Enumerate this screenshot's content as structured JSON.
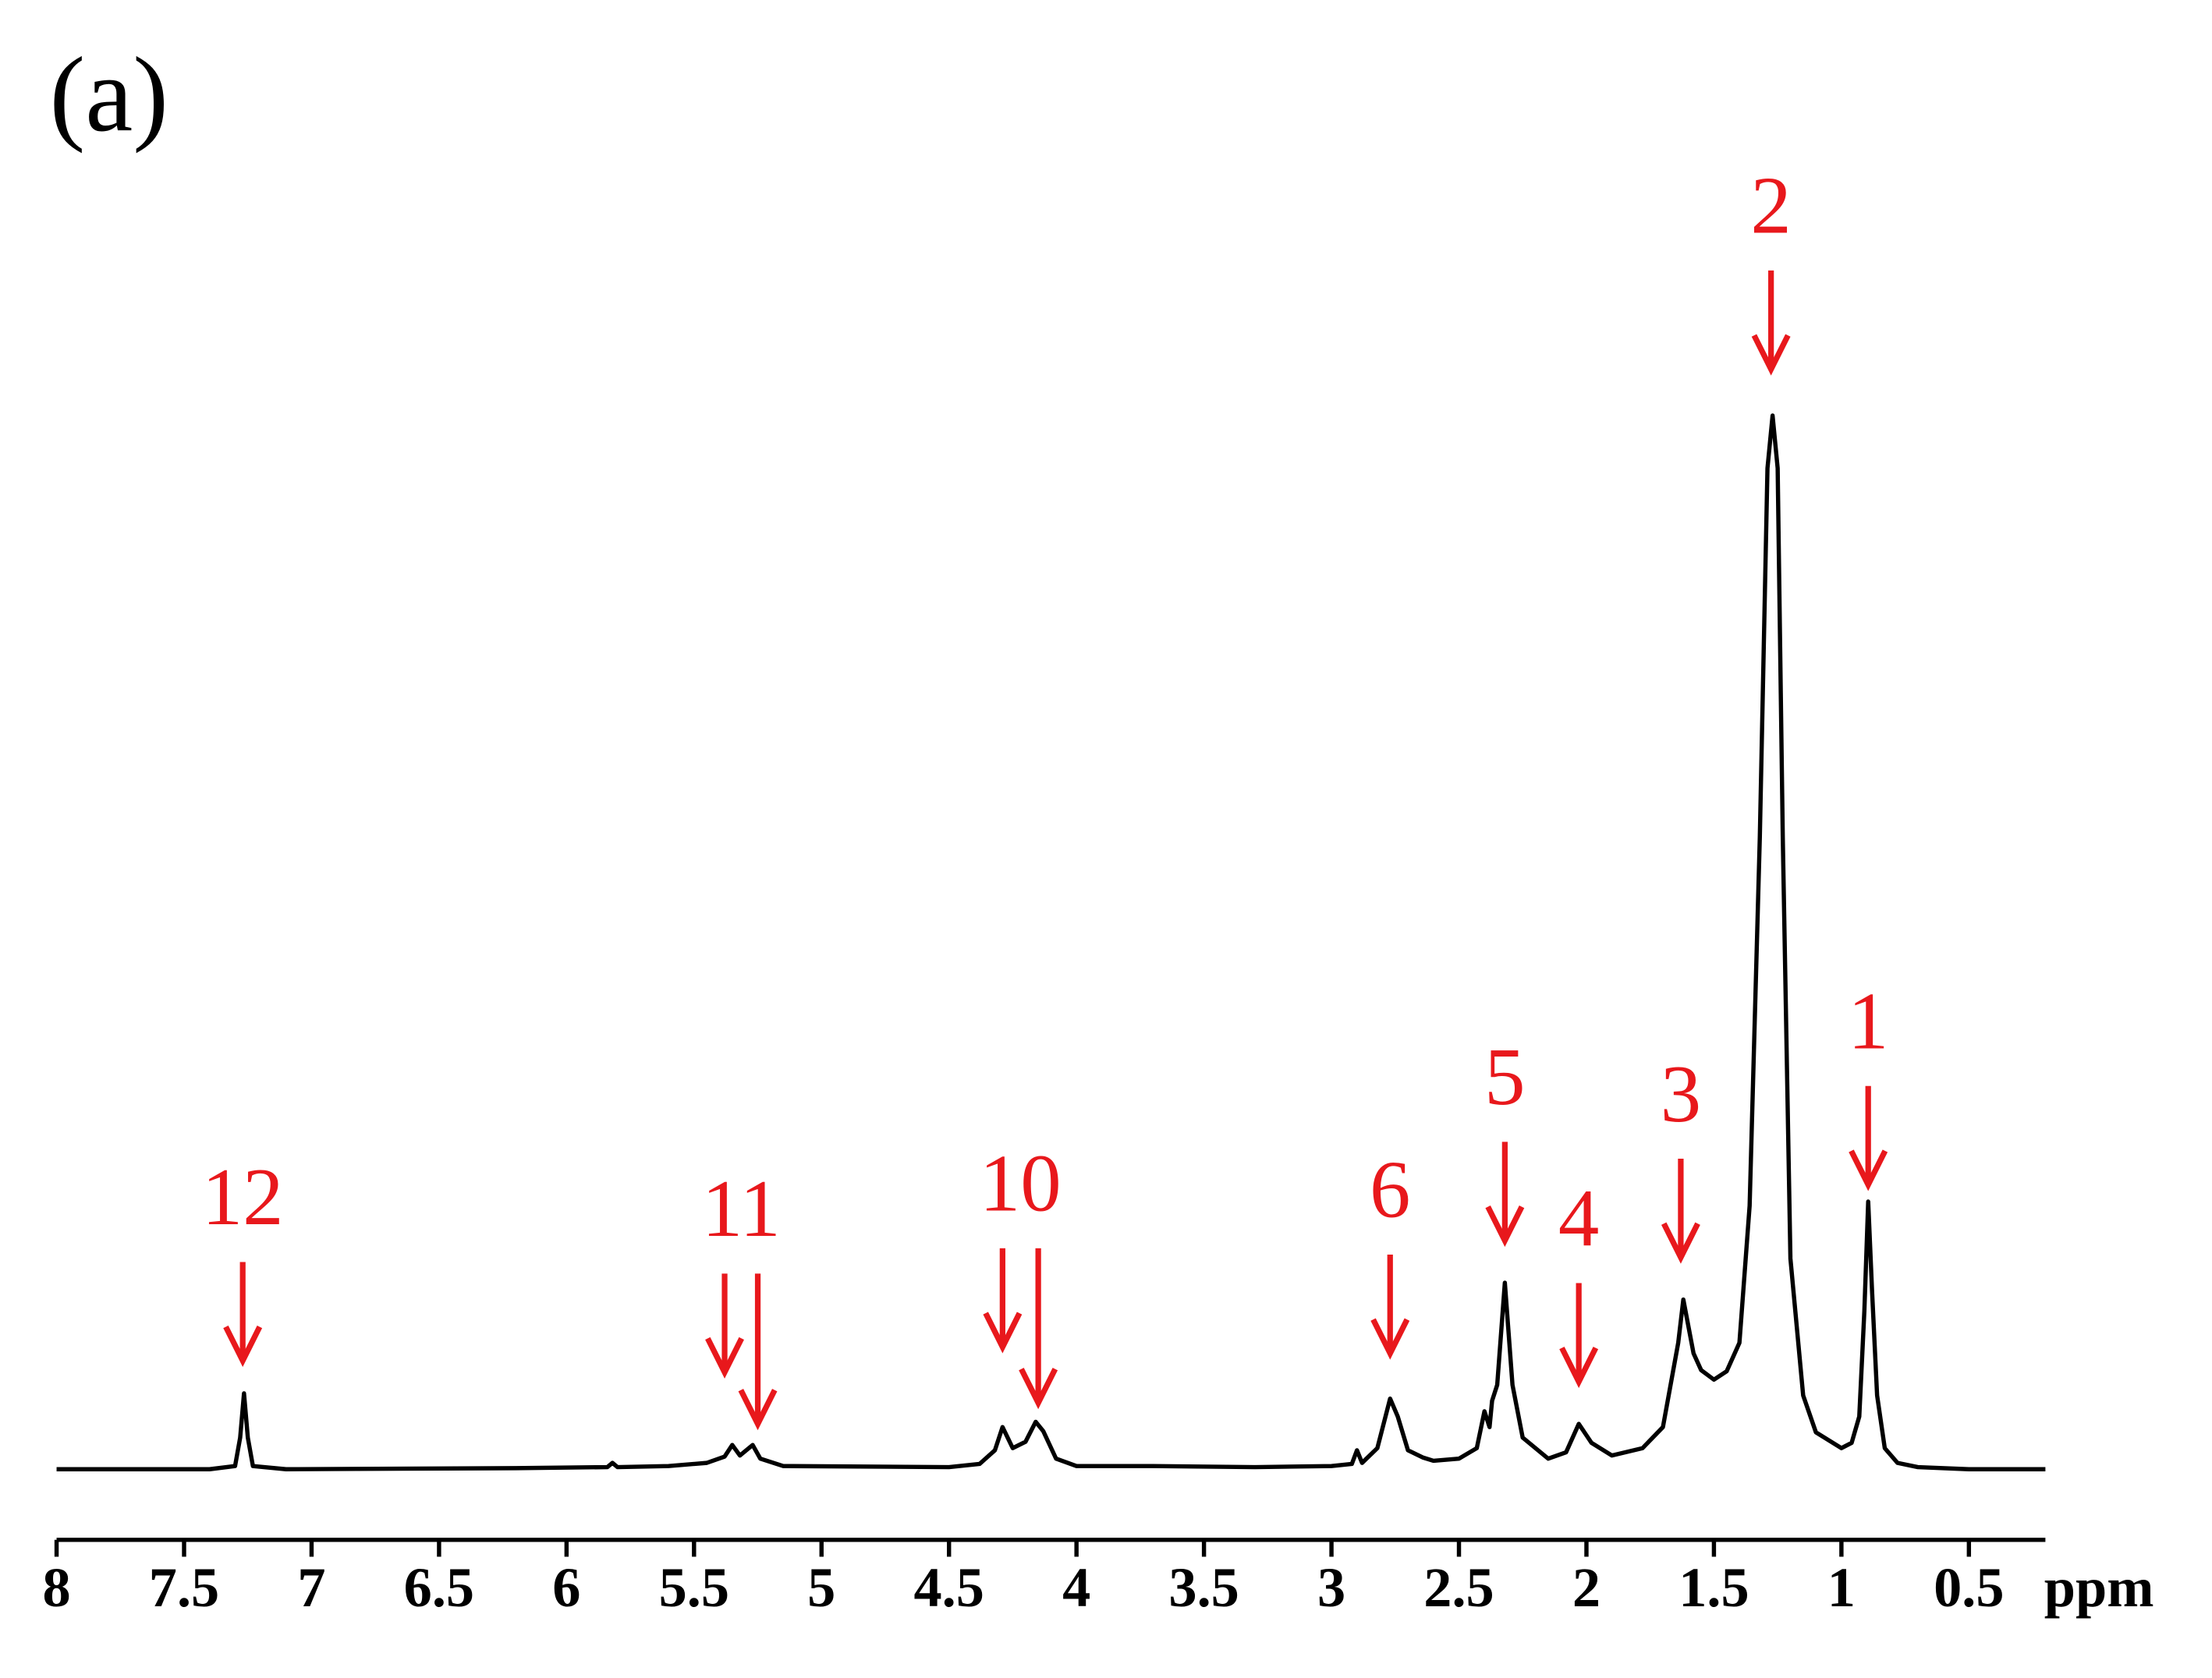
{
  "chart_data": {
    "type": "line",
    "panel_label": "(a)",
    "x_unit_label": "ppm",
    "xlim": [
      8,
      0.2
    ],
    "ylim": [
      -6.7,
      110
    ],
    "xticks": [
      8,
      7.5,
      7,
      6.5,
      6,
      5.5,
      5,
      4.5,
      4,
      3.5,
      3,
      2.5,
      2,
      1.5,
      1,
      0.5
    ],
    "series": [
      {
        "color": "#000000",
        "x": [
          8.0,
          7.4,
          7.3,
          7.28,
          7.265,
          7.25,
          7.23,
          7.1,
          6.2,
          5.84,
          5.82,
          5.8,
          5.6,
          5.45,
          5.38,
          5.35,
          5.32,
          5.29,
          5.27,
          5.24,
          5.15,
          4.5,
          4.38,
          4.32,
          4.29,
          4.25,
          4.2,
          4.16,
          4.13,
          4.08,
          4.0,
          3.7,
          3.3,
          3.0,
          2.92,
          2.9,
          2.88,
          2.82,
          2.77,
          2.74,
          2.7,
          2.64,
          2.6,
          2.5,
          2.43,
          2.4,
          2.38,
          2.37,
          2.35,
          2.32,
          2.29,
          2.25,
          2.15,
          2.08,
          2.03,
          1.98,
          1.9,
          1.78,
          1.7,
          1.64,
          1.62,
          1.58,
          1.55,
          1.5,
          1.45,
          1.4,
          1.36,
          1.32,
          1.29,
          1.27,
          1.25,
          1.23,
          1.2,
          1.15,
          1.1,
          1.0,
          0.96,
          0.93,
          0.91,
          0.895,
          0.88,
          0.86,
          0.83,
          0.78,
          0.7,
          0.5,
          0.2
        ],
        "values": [
          0,
          0,
          0.3,
          3,
          7.2,
          3,
          0.3,
          0,
          0.1,
          0.2,
          0.6,
          0.2,
          0.3,
          0.6,
          1.2,
          2.3,
          1.3,
          1.9,
          2.3,
          1.0,
          0.3,
          0.2,
          0.5,
          1.8,
          4.0,
          2.0,
          2.6,
          4.5,
          3.6,
          1.0,
          0.3,
          0.3,
          0.2,
          0.3,
          0.5,
          1.8,
          0.6,
          2.0,
          6.7,
          5.0,
          1.8,
          1.1,
          0.8,
          1.0,
          2.0,
          5.5,
          4.0,
          6.5,
          8.0,
          17.7,
          8.0,
          3.0,
          1.0,
          1.6,
          4.3,
          2.5,
          1.3,
          2.0,
          4.0,
          12,
          16.1,
          11,
          9.4,
          8.5,
          9.3,
          12,
          25,
          60,
          95,
          100,
          95,
          60,
          20,
          7,
          3.5,
          2.0,
          2.5,
          5,
          15,
          25.4,
          17,
          7,
          2,
          0.6,
          0.2,
          0,
          0
        ]
      }
    ],
    "annotations": [
      {
        "text": "12",
        "color": "#e8181c",
        "arrows": [
          {
            "x": 7.27,
            "y": 10.3
          }
        ]
      },
      {
        "text": "11",
        "color": "#e8181c",
        "arrows": [
          {
            "x": 5.38,
            "y": 9.2
          },
          {
            "x": 5.25,
            "y": 4.3
          }
        ]
      },
      {
        "text": "10",
        "color": "#e8181c",
        "arrows": [
          {
            "x": 4.29,
            "y": 11.6
          },
          {
            "x": 4.15,
            "y": 6.3
          }
        ]
      },
      {
        "text": "6",
        "color": "#e8181c",
        "arrows": [
          {
            "x": 2.77,
            "y": 11.0
          }
        ]
      },
      {
        "text": "5",
        "color": "#e8181c",
        "arrows": [
          {
            "x": 2.32,
            "y": 21.7
          }
        ]
      },
      {
        "text": "4",
        "color": "#e8181c",
        "arrows": [
          {
            "x": 2.03,
            "y": 8.3
          }
        ]
      },
      {
        "text": "3",
        "color": "#e8181c",
        "arrows": [
          {
            "x": 1.63,
            "y": 20.1
          }
        ]
      },
      {
        "text": "2",
        "color": "#e8181c",
        "arrows": [
          {
            "x": 1.276,
            "y": 104.4
          }
        ]
      },
      {
        "text": "1",
        "color": "#e8181c",
        "arrows": [
          {
            "x": 0.895,
            "y": 27.0
          }
        ]
      }
    ]
  }
}
